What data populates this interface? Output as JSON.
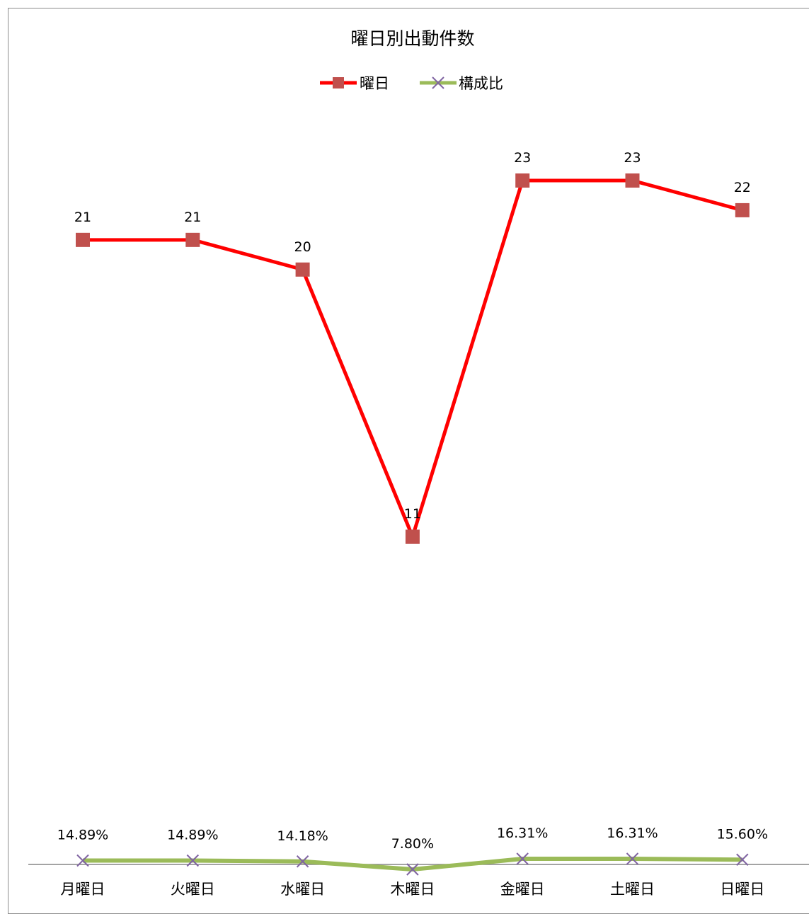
{
  "chart_data": {
    "type": "line",
    "title": "曜日別出動件数",
    "categories": [
      "月曜日",
      "火曜日",
      "水曜日",
      "木曜日",
      "金曜日",
      "土曜日",
      "日曜日"
    ],
    "series": [
      {
        "name": "曜日",
        "values": [
          21,
          21,
          20,
          11,
          23,
          23,
          22
        ],
        "labels": [
          "21",
          "21",
          "20",
          "11",
          "23",
          "23",
          "22"
        ],
        "color": "#ff0000",
        "marker": "square",
        "marker_color": "#c0504d"
      },
      {
        "name": "構成比",
        "values": [
          0.1489,
          0.1489,
          0.1418,
          0.078,
          0.1631,
          0.1631,
          0.156
        ],
        "labels": [
          "14.89%",
          "14.89%",
          "14.18%",
          "7.80%",
          "16.31%",
          "16.31%",
          "15.60%"
        ],
        "color": "#9bbb59",
        "marker": "x",
        "marker_color": "#8064a2"
      }
    ],
    "ylim": [
      0,
      25
    ],
    "grid": false,
    "legend_position": "top"
  }
}
